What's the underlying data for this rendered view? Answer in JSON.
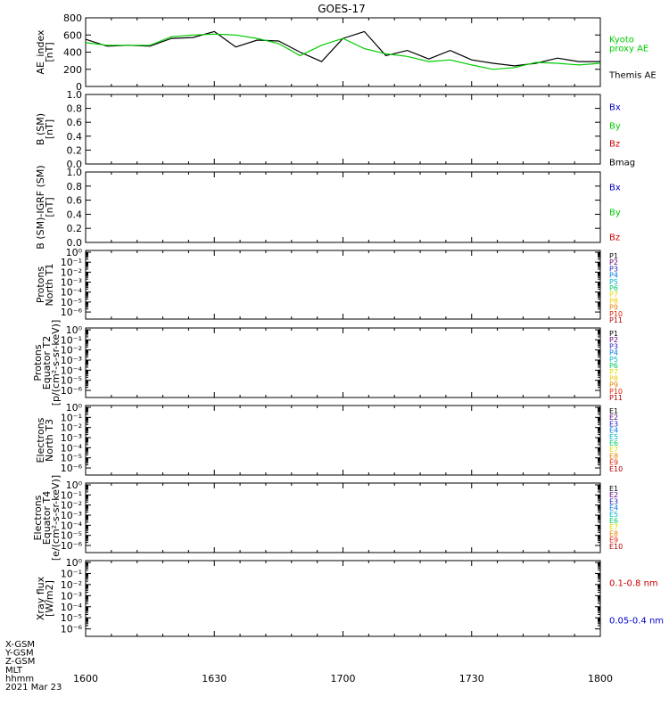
{
  "title": "GOES-17",
  "bottom_labels": [
    "X-GSM",
    "Y-GSM",
    "Z-GSM",
    "MLT",
    "hhmm",
    "2021 Mar 23"
  ],
  "x_tick_labels": [
    "1600",
    "1630",
    "1700",
    "1730",
    "1800"
  ],
  "colors": {
    "black": "#000000",
    "green": "#00cc00",
    "blue": "#0000cc",
    "red": "#cc0000"
  },
  "chart_data": [
    {
      "type": "line",
      "ylabel": [
        "AE_index",
        "[nT]"
      ],
      "ylim": [
        0,
        800
      ],
      "yticks": [
        "0",
        "200",
        "400",
        "600",
        "800"
      ],
      "x": [
        "1600",
        "1605",
        "1610",
        "1615",
        "1620",
        "1625",
        "1630",
        "1635",
        "1640",
        "1645",
        "1650",
        "1655",
        "1700",
        "1705",
        "1710",
        "1715",
        "1720",
        "1725",
        "1730",
        "1735",
        "1740",
        "1745",
        "1750",
        "1755",
        "1800"
      ],
      "series": [
        {
          "name": "Themis AE",
          "color": "#000000",
          "values": [
            550,
            470,
            480,
            470,
            560,
            570,
            640,
            460,
            540,
            530,
            400,
            290,
            560,
            640,
            360,
            420,
            320,
            420,
            310,
            270,
            240,
            270,
            330,
            290,
            290
          ]
        },
        {
          "name": "Kyoto proxy AE",
          "color": "#00cc00",
          "values": [
            510,
            480,
            480,
            480,
            580,
            600,
            610,
            600,
            560,
            500,
            360,
            480,
            560,
            440,
            380,
            350,
            290,
            310,
            250,
            200,
            220,
            280,
            270,
            250,
            270
          ]
        }
      ],
      "legend": [
        {
          "text": "Kyoto",
          "color": "#00cc00"
        },
        {
          "text": "proxy AE",
          "color": "#00cc00"
        },
        {
          "text": "Themis AE",
          "color": "#000000"
        }
      ]
    },
    {
      "type": "line",
      "ylabel": [
        "B (SM)",
        "[nT]"
      ],
      "ylim": [
        0,
        1
      ],
      "yticks": [
        "0.0",
        "0.2",
        "0.4",
        "0.6",
        "0.8",
        "1.0"
      ],
      "series": [],
      "legend": [
        {
          "text": "Bx",
          "color": "#0000cc"
        },
        {
          "text": "By",
          "color": "#00cc00"
        },
        {
          "text": "Bz",
          "color": "#cc0000"
        },
        {
          "text": "Bmag",
          "color": "#000000"
        }
      ]
    },
    {
      "type": "line",
      "ylabel": [
        "B (SM)-IGRF (SM)",
        "[nT]"
      ],
      "ylim": [
        0,
        1
      ],
      "yticks": [
        "0.0",
        "0.2",
        "0.4",
        "0.6",
        "0.8",
        "1.0"
      ],
      "series": [],
      "legend": [
        {
          "text": "Bx",
          "color": "#0000cc"
        },
        {
          "text": "By",
          "color": "#00cc00"
        },
        {
          "text": "Bz",
          "color": "#cc0000"
        }
      ]
    },
    {
      "type": "line",
      "log_scale": true,
      "ylabel": [
        "Protons",
        "North T1"
      ],
      "yticks": [
        "10⁰",
        "10⁻¹",
        "10⁻²",
        "10⁻³",
        "10⁻⁴",
        "10⁻⁵",
        "10⁻⁶"
      ],
      "series": [],
      "legend": [
        {
          "text": "P1",
          "color": "#000000"
        },
        {
          "text": "P2",
          "color": "#5a0078"
        },
        {
          "text": "P3",
          "color": "#1e1eb4"
        },
        {
          "text": "P4",
          "color": "#0078dc"
        },
        {
          "text": "P5",
          "color": "#00b4c8"
        },
        {
          "text": "P6",
          "color": "#00c864"
        },
        {
          "text": "P7",
          "color": "#dcdc00"
        },
        {
          "text": "P8",
          "color": "#f0c800"
        },
        {
          "text": "P9",
          "color": "#e68200"
        },
        {
          "text": "P10",
          "color": "#dc1e00"
        },
        {
          "text": "P11",
          "color": "#b40000"
        }
      ]
    },
    {
      "type": "line",
      "log_scale": true,
      "ylabel": [
        "Protons",
        "Equator T2",
        "[p/(cm²-s-sr-keV)]"
      ],
      "yticks": [
        "10⁰",
        "10⁻¹",
        "10⁻²",
        "10⁻³",
        "10⁻⁴",
        "10⁻⁵",
        "10⁻⁶"
      ],
      "series": [],
      "legend": [
        {
          "text": "P1",
          "color": "#000000"
        },
        {
          "text": "P2",
          "color": "#5a0078"
        },
        {
          "text": "P3",
          "color": "#1e1eb4"
        },
        {
          "text": "P4",
          "color": "#0078dc"
        },
        {
          "text": "P5",
          "color": "#00b4c8"
        },
        {
          "text": "P6",
          "color": "#00c864"
        },
        {
          "text": "P7",
          "color": "#dcdc00"
        },
        {
          "text": "P8",
          "color": "#f0c800"
        },
        {
          "text": "P9",
          "color": "#e68200"
        },
        {
          "text": "P10",
          "color": "#dc1e00"
        },
        {
          "text": "P11",
          "color": "#b40000"
        }
      ]
    },
    {
      "type": "line",
      "log_scale": true,
      "ylabel": [
        "Electrons",
        "North T3"
      ],
      "yticks": [
        "10⁰",
        "10⁻¹",
        "10⁻²",
        "10⁻³",
        "10⁻⁴",
        "10⁻⁵",
        "10⁻⁶"
      ],
      "series": [],
      "legend": [
        {
          "text": "E1",
          "color": "#000000"
        },
        {
          "text": "E2",
          "color": "#5a0078"
        },
        {
          "text": "E3",
          "color": "#1e1eb4"
        },
        {
          "text": "E4",
          "color": "#0078dc"
        },
        {
          "text": "E5",
          "color": "#00b4c8"
        },
        {
          "text": "E6",
          "color": "#00c864"
        },
        {
          "text": "E7",
          "color": "#dcdc00"
        },
        {
          "text": "E8",
          "color": "#e68200"
        },
        {
          "text": "E9",
          "color": "#dc1e00"
        },
        {
          "text": "E10",
          "color": "#b40000"
        }
      ]
    },
    {
      "type": "line",
      "log_scale": true,
      "ylabel": [
        "Electrons",
        "Equator T4",
        "[e/(cm²-s-sr-keV)]"
      ],
      "yticks": [
        "10⁰",
        "10⁻¹",
        "10⁻²",
        "10⁻³",
        "10⁻⁴",
        "10⁻⁵",
        "10⁻⁶"
      ],
      "series": [],
      "legend": [
        {
          "text": "E1",
          "color": "#000000"
        },
        {
          "text": "E2",
          "color": "#5a0078"
        },
        {
          "text": "E3",
          "color": "#1e1eb4"
        },
        {
          "text": "E4",
          "color": "#0078dc"
        },
        {
          "text": "E5",
          "color": "#00b4c8"
        },
        {
          "text": "E6",
          "color": "#00c864"
        },
        {
          "text": "E7",
          "color": "#dcdc00"
        },
        {
          "text": "E8",
          "color": "#e68200"
        },
        {
          "text": "E9",
          "color": "#dc1e00"
        },
        {
          "text": "E10",
          "color": "#b40000"
        }
      ]
    },
    {
      "type": "line",
      "log_scale": true,
      "ylabel": [
        "Xray flux",
        "[W/m2]"
      ],
      "yticks": [
        "10⁰",
        "10⁻¹",
        "10⁻²",
        "10⁻³",
        "10⁻⁴",
        "10⁻⁵",
        "10⁻⁶"
      ],
      "series": [],
      "legend": [
        {
          "text": "0.1-0.8 nm",
          "color": "#cc0000"
        },
        {
          "text": "0.05-0.4 nm",
          "color": "#0000cc"
        }
      ]
    }
  ]
}
